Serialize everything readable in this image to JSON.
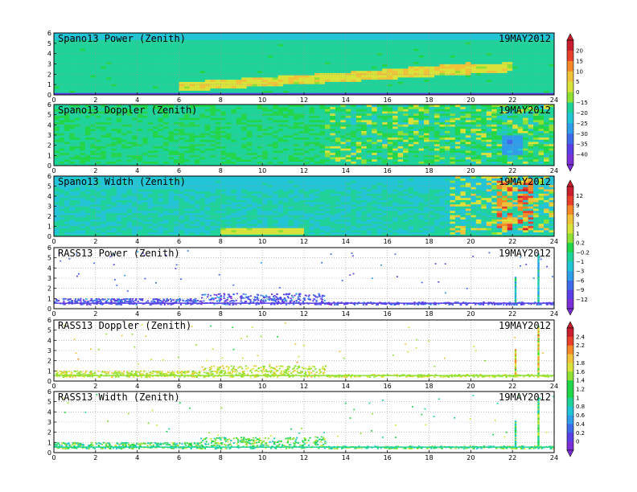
{
  "date": "19MAY2012",
  "colors": {
    "scale": [
      "#7b2fd6",
      "#5a3fe6",
      "#3f6be8",
      "#2f9de8",
      "#22c4d6",
      "#1fd39a",
      "#22d64a",
      "#8fe034",
      "#d8e23a",
      "#f0c23a",
      "#f28a2a",
      "#e8402a",
      "#c81e2e"
    ]
  },
  "colorbars": [
    {
      "name": "colorbar-spano-power-doppler",
      "labels": [
        "20",
        "15",
        "10",
        "5",
        "0",
        "−15",
        "−20",
        "−25",
        "−30",
        "−35",
        "−40"
      ]
    },
    {
      "name": "colorbar-spano-width-rass-power",
      "labels": [
        "12",
        "9",
        "6",
        "3",
        "1",
        "0.2",
        "−0.2",
        "−1",
        "−3",
        "−6",
        "−9",
        "−12"
      ]
    },
    {
      "name": "colorbar-rass-doppler-width",
      "labels": [
        "2.4",
        "2.2",
        "2",
        "1.8",
        "1.6",
        "1.4",
        "1.2",
        "1",
        "0.8",
        "0.6",
        "0.4",
        "0.2",
        "0"
      ]
    }
  ],
  "chart_data": [
    {
      "type": "heatmap",
      "title": "Spano13 Power (Zenith)",
      "date": "19MAY2012",
      "xlim": [
        0,
        24
      ],
      "ylim": [
        0,
        6
      ],
      "x_ticks": [
        0,
        2,
        4,
        6,
        8,
        10,
        12,
        14,
        16,
        18,
        20,
        22,
        24
      ],
      "y_ticks": [
        0,
        1,
        2,
        3,
        4,
        5,
        6
      ],
      "grid": true
    },
    {
      "type": "heatmap",
      "title": "Spano13 Doppler (Zenith)",
      "date": "19MAY2012",
      "xlim": [
        0,
        24
      ],
      "ylim": [
        0,
        6
      ],
      "x_ticks": [
        0,
        2,
        4,
        6,
        8,
        10,
        12,
        14,
        16,
        18,
        20,
        22,
        24
      ],
      "y_ticks": [
        0,
        1,
        2,
        3,
        4,
        5,
        6
      ],
      "grid": true
    },
    {
      "type": "heatmap",
      "title": "Spano13 Width (Zenith)",
      "date": "19MAY2012",
      "xlim": [
        0,
        24
      ],
      "ylim": [
        0,
        6
      ],
      "x_ticks": [
        0,
        2,
        4,
        6,
        8,
        10,
        12,
        14,
        16,
        18,
        20,
        22,
        24
      ],
      "y_ticks": [
        0,
        1,
        2,
        3,
        4,
        5,
        6
      ],
      "grid": true
    },
    {
      "type": "heatmap",
      "title": "RASS13 Power (Zenith)",
      "date": "19MAY2012",
      "xlim": [
        0,
        24
      ],
      "ylim": [
        0,
        6
      ],
      "x_ticks": [
        0,
        2,
        4,
        6,
        8,
        10,
        12,
        14,
        16,
        18,
        20,
        22,
        24
      ],
      "y_ticks": [
        0,
        1,
        2,
        3,
        4,
        5,
        6
      ],
      "grid": true
    },
    {
      "type": "heatmap",
      "title": "RASS13 Doppler (Zenith)",
      "date": "19MAY2012",
      "xlim": [
        0,
        24
      ],
      "ylim": [
        0,
        6
      ],
      "x_ticks": [
        0,
        2,
        4,
        6,
        8,
        10,
        12,
        14,
        16,
        18,
        20,
        22,
        24
      ],
      "y_ticks": [
        0,
        1,
        2,
        3,
        4,
        5,
        6
      ],
      "grid": true
    },
    {
      "type": "heatmap",
      "title": "RASS13 Width (Zenith)",
      "date": "19MAY2012",
      "xlim": [
        0,
        24
      ],
      "ylim": [
        0,
        6
      ],
      "x_ticks": [
        0,
        2,
        4,
        6,
        8,
        10,
        12,
        14,
        16,
        18,
        20,
        22,
        24
      ],
      "y_ticks": [
        0,
        1,
        2,
        3,
        4,
        5,
        6
      ],
      "grid": true
    }
  ]
}
